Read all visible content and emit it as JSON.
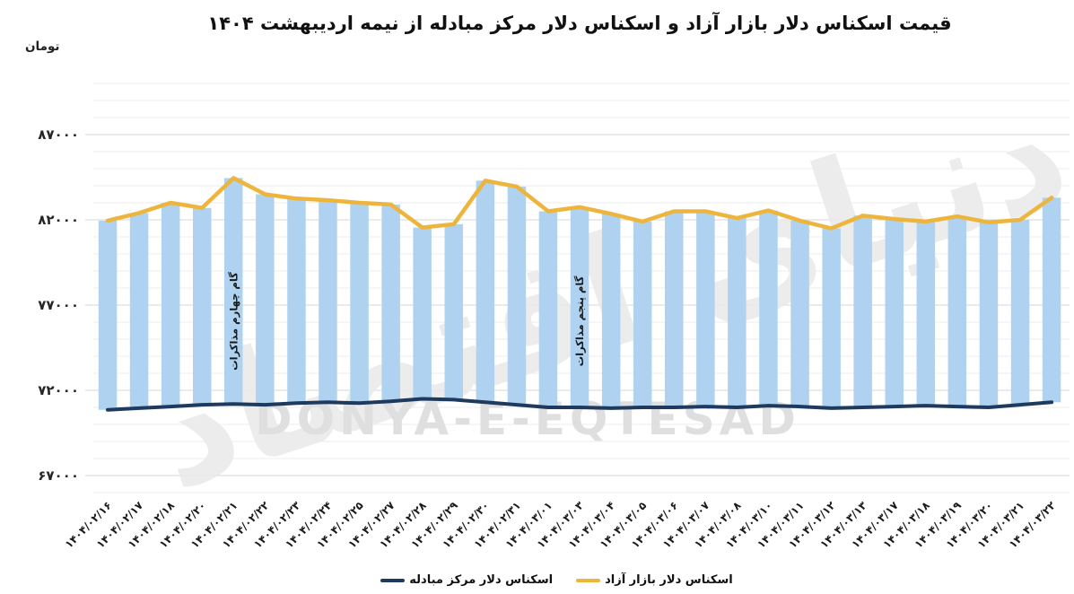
{
  "page": {
    "title": "قیمت اسکناس دلار بازار آزاد و اسکناس دلار مرکز مبادله از نیمه اردیبهشت ۱۴۰۴",
    "unit_label": "تومان",
    "watermark_text": "DONYA-E-EQTESAD",
    "watermark_logo_text": "دنیای اقتصاد"
  },
  "chart_data": {
    "type": "bar",
    "title": "قیمت اسکناس دلار بازار آزاد و اسکناس دلار مرکز مبادله از نیمه اردیبهشت ۱۴۰۴",
    "ylabel": "تومان",
    "xlabel": "",
    "ylim": [
      66000,
      90000
    ],
    "gridline_step": 1000,
    "grid": true,
    "legend_position": "bottom",
    "bar_style": "floating range bars spanning from exchange-center rate up to free-market rate",
    "bar_color": "#AFD2F0",
    "yticks": [
      {
        "value": 87000,
        "label": "۸۷۰۰۰"
      },
      {
        "value": 82000,
        "label": "۸۲۰۰۰"
      },
      {
        "value": 77000,
        "label": "۷۷۰۰۰"
      },
      {
        "value": 72000,
        "label": "۷۲۰۰۰"
      },
      {
        "value": 67000,
        "label": "۶۷۰۰۰"
      }
    ],
    "categories": [
      "۱۴۰۴/۰۲/۱۶",
      "۱۴۰۴/۰۲/۱۷",
      "۱۴۰۴/۰۲/۱۸",
      "۱۴۰۴/۰۲/۲۰",
      "۱۴۰۴/۰۲/۲۱",
      "۱۴۰۴/۰۲/۲۲",
      "۱۴۰۴/۰۲/۲۳",
      "۱۴۰۴/۰۲/۲۴",
      "۱۴۰۴/۰۲/۲۵",
      "۱۴۰۴/۰۲/۲۷",
      "۱۴۰۴/۰۲/۲۸",
      "۱۴۰۴/۰۲/۲۹",
      "۱۴۰۴/۰۲/۳۰",
      "۱۴۰۴/۰۲/۳۱",
      "۱۴۰۴/۰۳/۰۱",
      "۱۴۰۴/۰۳/۰۳",
      "۱۴۰۴/۰۳/۰۴",
      "۱۴۰۴/۰۳/۰۵",
      "۱۴۰۴/۰۳/۰۶",
      "۱۴۰۴/۰۳/۰۷",
      "۱۴۰۴/۰۳/۰۸",
      "۱۴۰۴/۰۳/۱۰",
      "۱۴۰۴/۰۳/۱۱",
      "۱۴۰۴/۰۳/۱۲",
      "۱۴۰۴/۰۳/۱۳",
      "۱۴۰۴/۰۳/۱۷",
      "۱۴۰۴/۰۳/۱۸",
      "۱۴۰۴/۰۳/۱۹",
      "۱۴۰۴/۰۳/۲۰",
      "۱۴۰۴/۰۳/۲۱",
      "۱۴۰۴/۰۳/۲۲"
    ],
    "series": [
      {
        "name": "اسکناس دلار بازار آزاد",
        "role": "line-top",
        "color": "#EDB53C",
        "values": [
          81950,
          82400,
          83000,
          82700,
          84450,
          83500,
          83250,
          83150,
          83000,
          82900,
          81550,
          81750,
          84300,
          83950,
          82500,
          82750,
          82350,
          81900,
          82500,
          82500,
          82100,
          82550,
          81950,
          81500,
          82250,
          82050,
          81900,
          82200,
          81850,
          82000,
          83300
        ]
      },
      {
        "name": "اسکناس دلار مرکز مبادله",
        "role": "line-bottom",
        "color": "#1E3A5F",
        "values": [
          70850,
          70950,
          71050,
          71150,
          71200,
          71150,
          71250,
          71300,
          71250,
          71350,
          71500,
          71450,
          71300,
          71150,
          71000,
          71000,
          70950,
          71000,
          71000,
          71050,
          71000,
          71100,
          71050,
          70950,
          71000,
          71050,
          71100,
          71050,
          71000,
          71150,
          71300
        ]
      }
    ],
    "annotations": [
      {
        "text": "گام چهارم مذاکرات",
        "category": "۱۴۰۴/۰۲/۲۱",
        "index": 4
      },
      {
        "text": "گام پنجم مذاکرات",
        "category": "۱۴۰۴/۰۳/۰۳",
        "index": 15
      }
    ],
    "legend": {
      "position": "bottom",
      "entries": [
        {
          "label": "اسکناس دلار مرکز مبادله",
          "color": "#1E3A5F"
        },
        {
          "label": "اسکناس دلار بازار آزاد",
          "color": "#EDB53C"
        }
      ]
    }
  }
}
